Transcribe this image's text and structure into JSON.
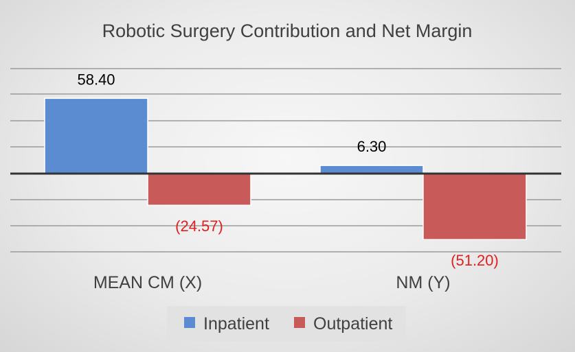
{
  "chart_data": {
    "type": "bar",
    "title": "Robotic Surgery Contribution and Net Margin",
    "categories": [
      "MEAN CM (X)",
      "NM (Y)"
    ],
    "series": [
      {
        "name": "Inpatient",
        "values": [
          58.4,
          6.3
        ],
        "labels": [
          "58.40",
          "6.30"
        ],
        "color": "#5b8bd0",
        "label_color": "#000000"
      },
      {
        "name": "Outpatient",
        "values": [
          -24.57,
          -51.2
        ],
        "labels": [
          "(24.57)",
          "(51.20)"
        ],
        "color": "#c85a5a",
        "label_color": "#e02020"
      }
    ],
    "ylim": [
      -60,
      85
    ],
    "grid": true,
    "legend": "bottom"
  }
}
